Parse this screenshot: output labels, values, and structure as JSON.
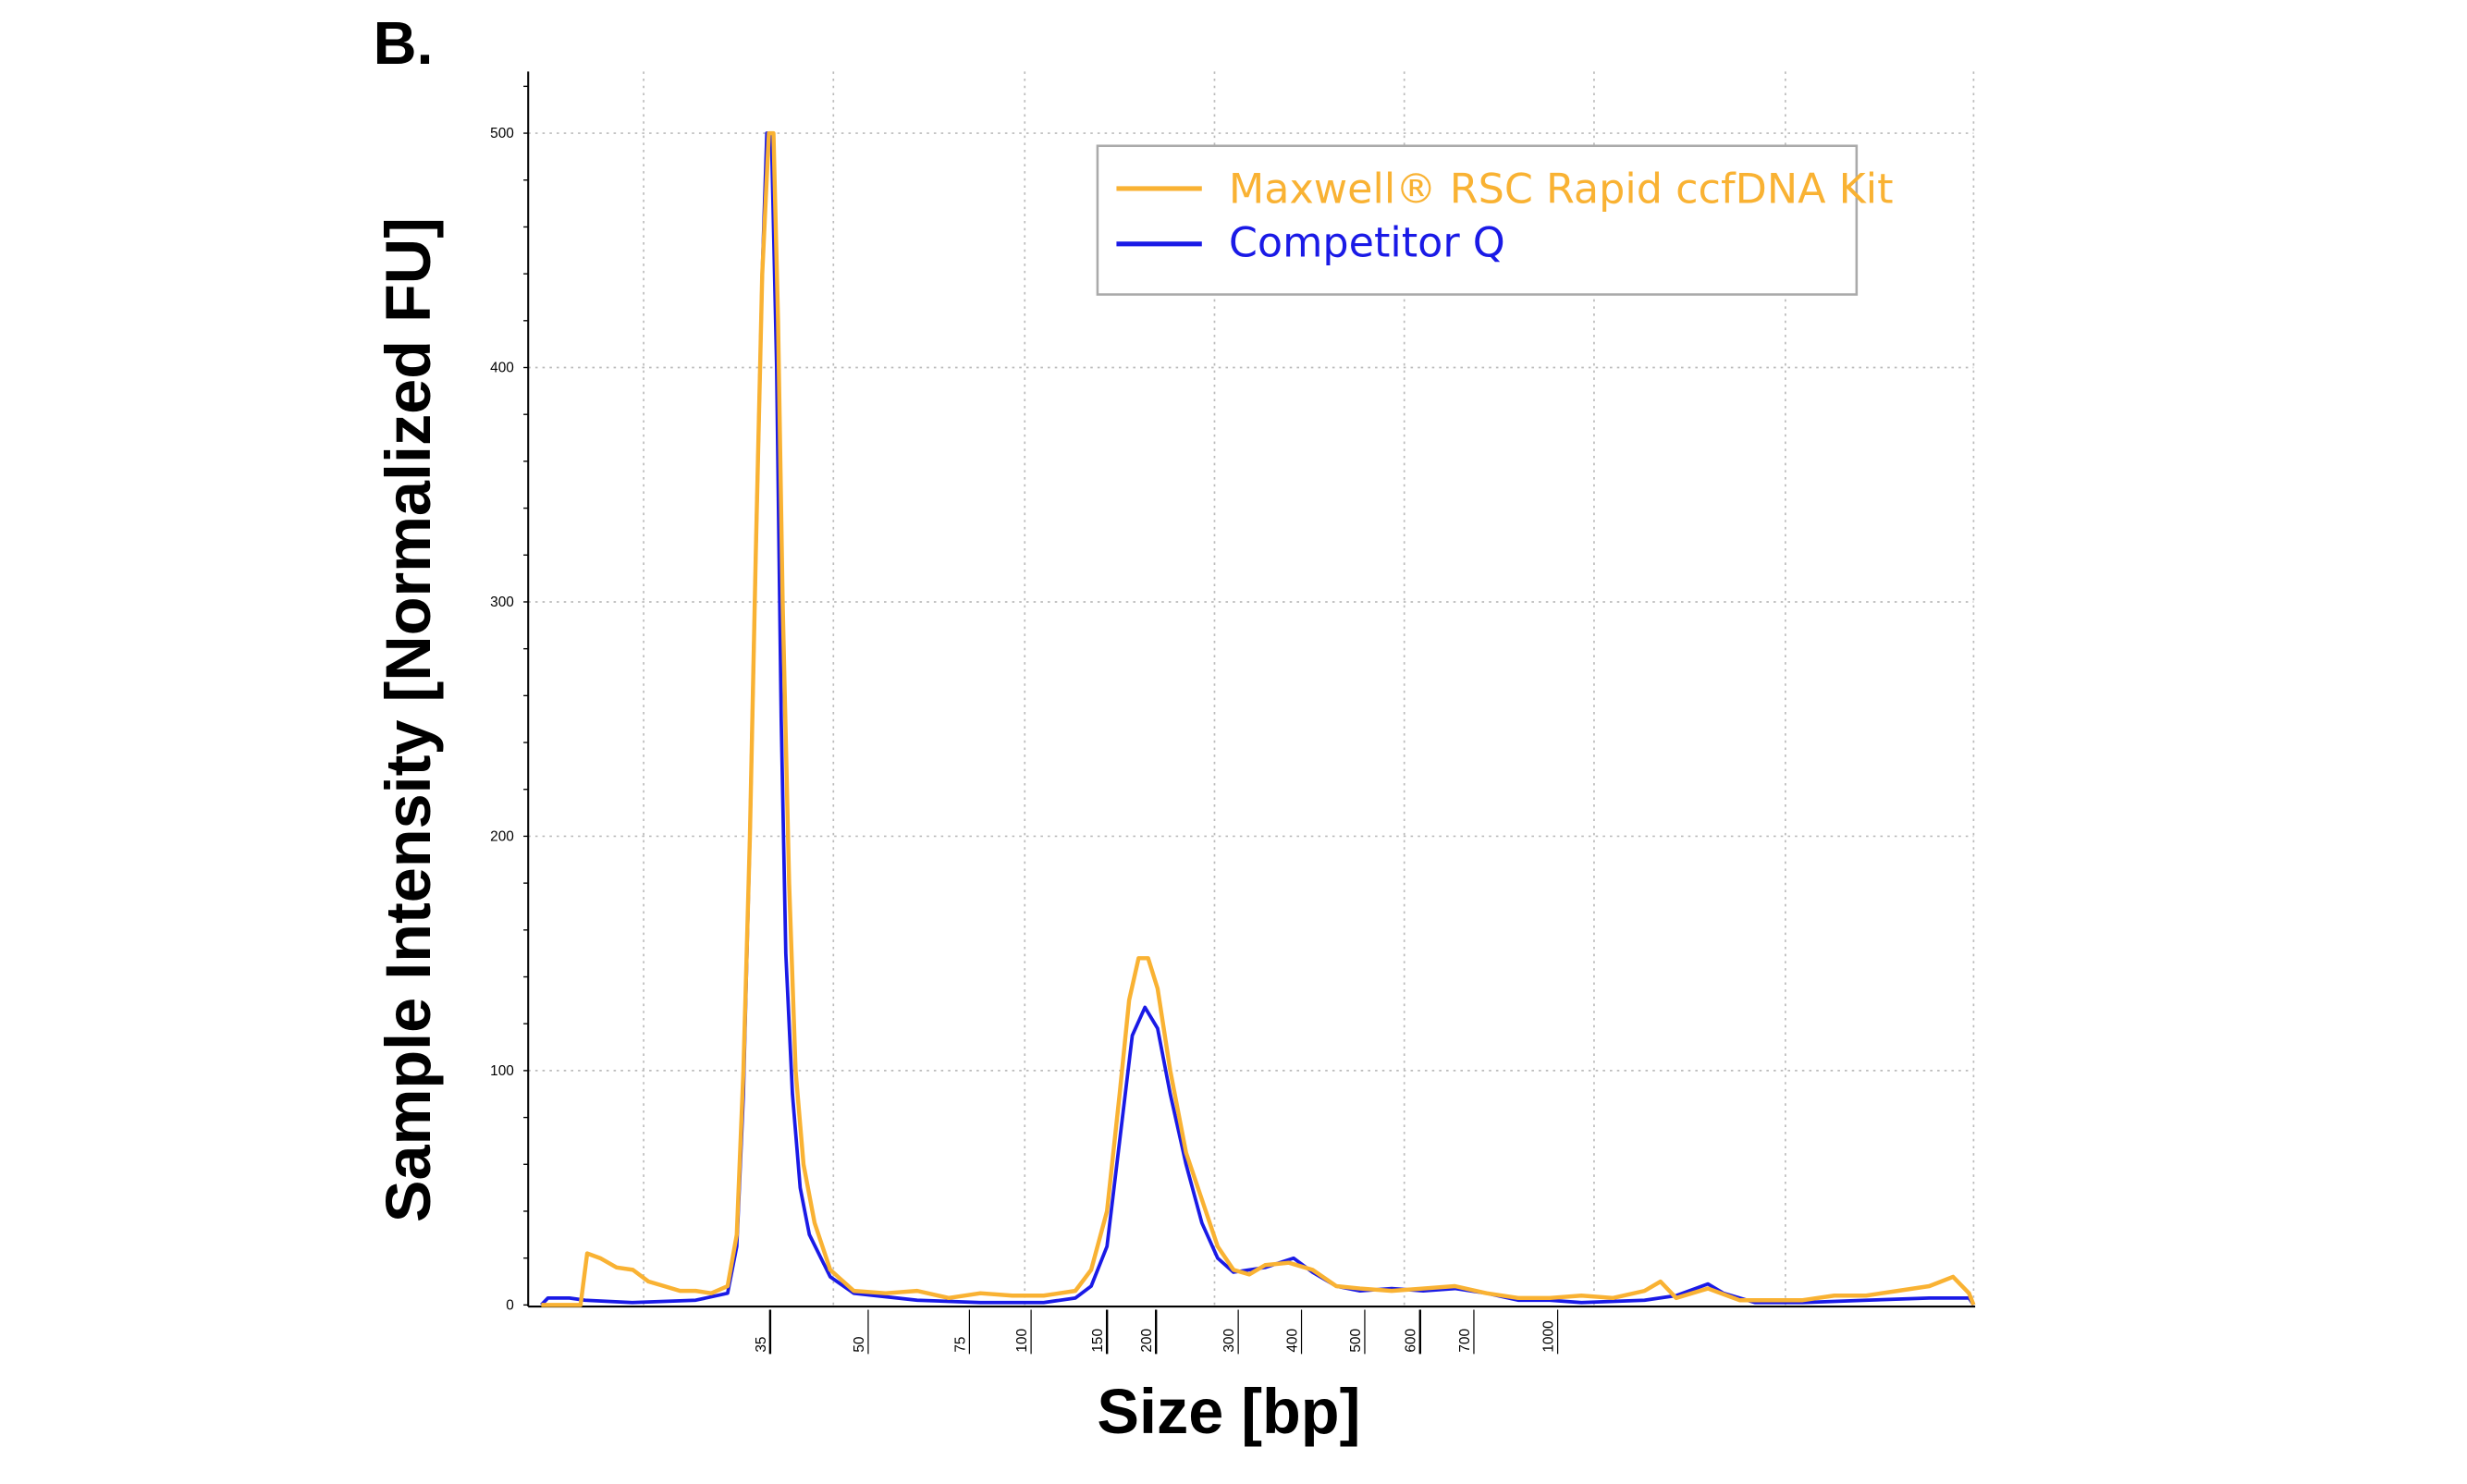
{
  "panel_label": "B.",
  "chart_data": {
    "type": "line",
    "title": "",
    "xlabel": "Size [bp]",
    "ylabel": "Sample Intensity [Normalized FU]",
    "ylim": [
      0,
      525
    ],
    "y_ticks": [
      0,
      100,
      200,
      300,
      400,
      500
    ],
    "x_ticks": [
      35,
      50,
      75,
      100,
      150,
      200,
      300,
      400,
      500,
      600,
      700,
      1000
    ],
    "x_scale": "ladder (non-linear, sizing by ladder peaks)",
    "grid": "dotted, both axes",
    "legend": {
      "position": "top-right",
      "boxed": true
    },
    "series": [
      {
        "name": "Maxwell® RSC Rapid ccfDNA Kit",
        "color": "#F9B233",
        "points": [
          [
            0,
            0
          ],
          [
            6,
            0
          ],
          [
            7,
            22
          ],
          [
            9,
            20
          ],
          [
            11.5,
            16
          ],
          [
            14,
            15
          ],
          [
            16.4,
            10
          ],
          [
            18.8,
            8
          ],
          [
            21.2,
            6
          ],
          [
            23.6,
            6
          ],
          [
            26,
            5
          ],
          [
            28.5,
            8
          ],
          [
            29.9,
            30
          ],
          [
            30.9,
            100
          ],
          [
            31.9,
            200
          ],
          [
            32.8,
            320
          ],
          [
            33.8,
            440
          ],
          [
            34.8,
            500
          ],
          [
            35.5,
            500
          ],
          [
            36.2,
            420
          ],
          [
            36.9,
            300
          ],
          [
            37.9,
            180
          ],
          [
            38.9,
            100
          ],
          [
            40.1,
            60
          ],
          [
            41.8,
            35
          ],
          [
            44.2,
            15
          ],
          [
            47.8,
            6
          ],
          [
            54.3,
            5
          ],
          [
            62.1,
            6
          ],
          [
            69.9,
            3
          ],
          [
            79.5,
            5
          ],
          [
            92.3,
            4
          ],
          [
            108.3,
            4
          ],
          [
            129.2,
            6
          ],
          [
            139.6,
            15
          ],
          [
            150,
            40
          ],
          [
            162.9,
            90
          ],
          [
            172.6,
            130
          ],
          [
            182.3,
            148
          ],
          [
            191.9,
            148
          ],
          [
            201.9,
            135
          ],
          [
            217.3,
            100
          ],
          [
            236.5,
            65
          ],
          [
            255.8,
            45
          ],
          [
            275,
            25
          ],
          [
            294.2,
            15
          ],
          [
            317.5,
            13
          ],
          [
            342.5,
            17
          ],
          [
            380,
            18
          ],
          [
            417.5,
            15
          ],
          [
            455,
            8
          ],
          [
            492.5,
            7
          ],
          [
            548.6,
            6
          ],
          [
            605.9,
            7
          ],
          [
            664.7,
            8
          ],
          [
            745.3,
            5
          ],
          [
            858.5,
            3
          ],
          [
            971.7,
            3
          ],
          [
            1085,
            4
          ],
          [
            1198,
            3
          ],
          [
            1311,
            6
          ],
          [
            1368,
            10
          ],
          [
            1424,
            3
          ],
          [
            1538,
            7
          ],
          [
            1651,
            2
          ],
          [
            1764,
            2
          ],
          [
            1877,
            2
          ],
          [
            1990,
            4
          ],
          [
            2104,
            4
          ],
          [
            2217,
            6
          ],
          [
            2330,
            8
          ],
          [
            2415,
            12
          ],
          [
            2472,
            5
          ],
          [
            2489,
            0
          ]
        ]
      },
      {
        "name": "Competitor Q",
        "color": "#1A1AE6",
        "points": [
          [
            0,
            0
          ],
          [
            1,
            3
          ],
          [
            4.3,
            3
          ],
          [
            6.7,
            2
          ],
          [
            13.9,
            1
          ],
          [
            23.6,
            2
          ],
          [
            28.5,
            5
          ],
          [
            29.9,
            25
          ],
          [
            30.9,
            90
          ],
          [
            31.9,
            200
          ],
          [
            32.8,
            320
          ],
          [
            33.8,
            440
          ],
          [
            34.5,
            500
          ],
          [
            35.2,
            500
          ],
          [
            36,
            400
          ],
          [
            36.7,
            250
          ],
          [
            37.4,
            150
          ],
          [
            38.4,
            90
          ],
          [
            39.6,
            50
          ],
          [
            41,
            30
          ],
          [
            44.2,
            12
          ],
          [
            47.8,
            5
          ],
          [
            62.1,
            2
          ],
          [
            79.5,
            1
          ],
          [
            108.3,
            1
          ],
          [
            129.2,
            3
          ],
          [
            139.6,
            8
          ],
          [
            150,
            25
          ],
          [
            162.9,
            70
          ],
          [
            175.8,
            115
          ],
          [
            188.7,
            127
          ],
          [
            201.9,
            118
          ],
          [
            217.3,
            90
          ],
          [
            236.5,
            60
          ],
          [
            255.8,
            35
          ],
          [
            275,
            20
          ],
          [
            294.2,
            14
          ],
          [
            342.5,
            16
          ],
          [
            387.5,
            20
          ],
          [
            417.5,
            14
          ],
          [
            455,
            8
          ],
          [
            492.5,
            6
          ],
          [
            548.6,
            7
          ],
          [
            605.9,
            6
          ],
          [
            664.7,
            7
          ],
          [
            745.3,
            5
          ],
          [
            858.5,
            2
          ],
          [
            971.7,
            2
          ],
          [
            1085,
            1
          ],
          [
            1311,
            2
          ],
          [
            1424,
            4
          ],
          [
            1538,
            9
          ],
          [
            1594,
            5
          ],
          [
            1707,
            1
          ],
          [
            1877,
            1
          ],
          [
            2104,
            2
          ],
          [
            2330,
            3
          ],
          [
            2472,
            3
          ],
          [
            2489,
            0
          ]
        ]
      }
    ]
  }
}
